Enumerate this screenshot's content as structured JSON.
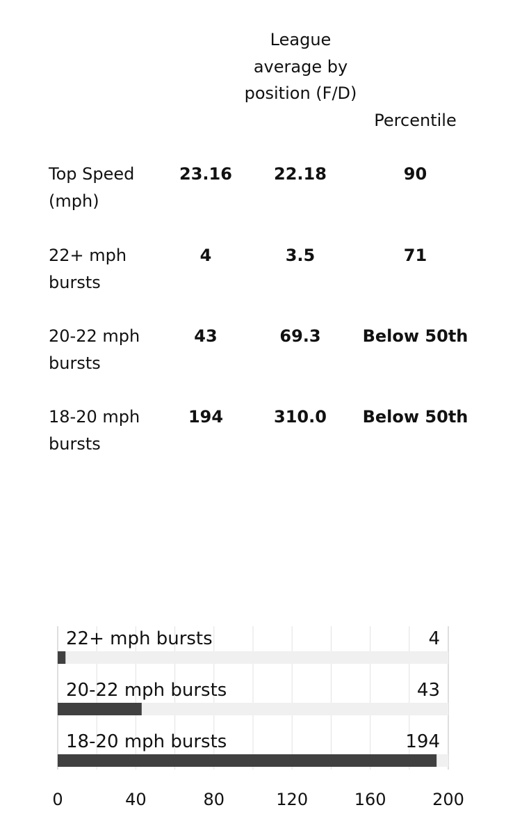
{
  "stats_table": {
    "columns": [
      {
        "label": ""
      },
      {
        "label": "League average by position (F/D)"
      },
      {
        "label": "Percentile"
      }
    ],
    "rows": [
      {
        "label": "Top Speed (mph)",
        "value": "23.16",
        "league_average": "22.18",
        "percentile": "90"
      },
      {
        "label": "22+ mph bursts",
        "value": "4",
        "league_average": "3.5",
        "percentile": "71"
      },
      {
        "label": "20-22 mph bursts",
        "value": "43",
        "league_average": "69.3",
        "percentile": "Below 50th"
      },
      {
        "label": "18-20 mph bursts",
        "value": "194",
        "league_average": "310.0",
        "percentile": "Below 50th"
      }
    ]
  },
  "chart_data": {
    "type": "bar",
    "orientation": "horizontal",
    "categories": [
      "22+ mph bursts",
      "20-22 mph bursts",
      "18-20 mph bursts"
    ],
    "values": [
      4,
      43,
      194
    ],
    "xlim": [
      0,
      200
    ],
    "xticks": [
      0,
      40,
      80,
      120,
      160,
      200
    ],
    "grid": true,
    "data_labels": [
      "4",
      "43",
      "194"
    ],
    "title": "",
    "xlabel": "",
    "ylabel": "",
    "colors": {
      "bar": "#404040",
      "track": "#f0f0f0",
      "grid": "#e2e2e2",
      "axis": "#d4d4d4"
    }
  }
}
